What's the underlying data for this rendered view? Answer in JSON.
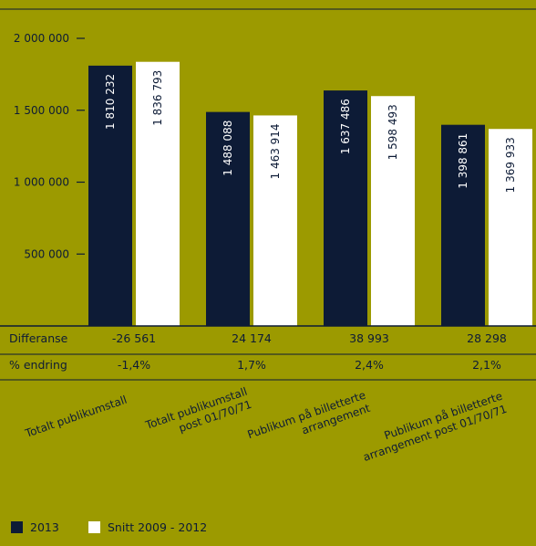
{
  "chart_data": {
    "type": "bar",
    "title": "",
    "xlabel": "",
    "ylabel": "",
    "ylim": [
      0,
      2000000
    ],
    "y_ticks": [
      {
        "value": 500000,
        "label": "500 000"
      },
      {
        "value": 1000000,
        "label": "1 000 000"
      },
      {
        "value": 1500000,
        "label": "1 500 000"
      },
      {
        "value": 2000000,
        "label": "2 000 000"
      }
    ],
    "categories": [
      [
        "Totalt publikumstall"
      ],
      [
        "Totalt publikumstall",
        "post 01/70/71"
      ],
      [
        "Publikum på billetterte",
        "arrangement"
      ],
      [
        "Publikum på billetterte",
        "arrangement post 01/70/71"
      ]
    ],
    "series": [
      {
        "name": "2013",
        "color": "#0d1b36",
        "label_color": "#ffffff",
        "values": [
          1810232,
          1488088,
          1637486,
          1398861
        ],
        "value_labels": [
          "1 810 232",
          "1 488 088",
          "1 637 486",
          "1 398 861"
        ]
      },
      {
        "name": "Snitt 2009 - 2012",
        "color": "#ffffff",
        "label_color": "#0d1b36",
        "values": [
          1836793,
          1463914,
          1598493,
          1369933
        ],
        "value_labels": [
          "1 836 793",
          "1 463 914",
          "1 598 493",
          "1 369 933"
        ]
      }
    ],
    "table_rows": [
      {
        "label": "Differanse",
        "values": [
          "-26 561",
          "24 174",
          "38 993",
          "28 298"
        ]
      },
      {
        "label": "% endring",
        "values": [
          "-1,4%",
          "1,7%",
          "2,4%",
          "2,1%"
        ]
      }
    ],
    "legend": "bottom-left",
    "grid": false
  },
  "colors": {
    "background": "#9c9a00",
    "text": "#0d1b36",
    "axis_line": "#0d1b36"
  }
}
